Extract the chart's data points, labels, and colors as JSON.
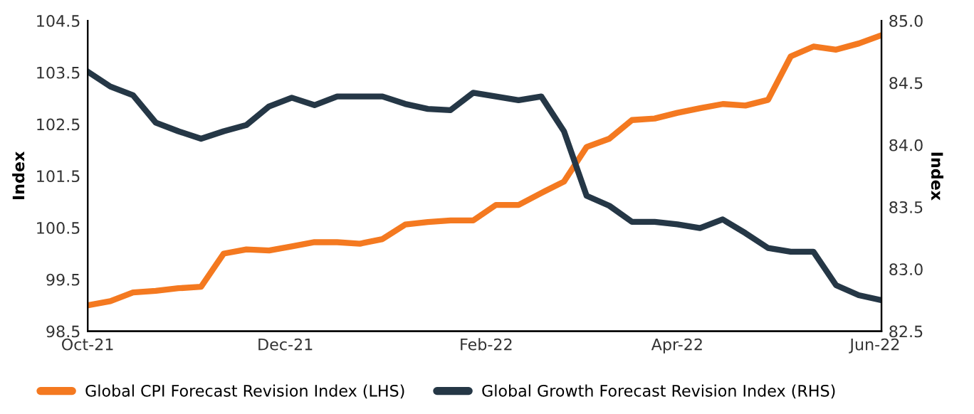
{
  "chart_data": {
    "type": "line",
    "x": [
      "2021-10-01",
      "2021-10-08",
      "2021-10-15",
      "2021-10-22",
      "2021-10-29",
      "2021-11-05",
      "2021-11-12",
      "2021-11-19",
      "2021-11-26",
      "2021-12-03",
      "2021-12-10",
      "2021-12-17",
      "2021-12-24",
      "2021-12-31",
      "2022-01-07",
      "2022-01-14",
      "2022-01-21",
      "2022-01-28",
      "2022-02-04",
      "2022-02-11",
      "2022-02-18",
      "2022-02-25",
      "2022-03-04",
      "2022-03-11",
      "2022-03-18",
      "2022-03-25",
      "2022-04-01",
      "2022-04-08",
      "2022-04-15",
      "2022-04-22",
      "2022-04-29",
      "2022-05-06",
      "2022-05-13",
      "2022-05-20",
      "2022-05-27",
      "2022-06-03"
    ],
    "series": [
      {
        "name": "Global CPI Forecast Revision Index (LHS)",
        "color": "#f47920",
        "values": [
          99.0,
          99.08,
          99.25,
          99.28,
          99.33,
          99.36,
          100.0,
          100.08,
          100.06,
          100.14,
          100.22,
          100.22,
          100.19,
          100.28,
          100.56,
          100.61,
          100.64,
          100.64,
          100.94,
          100.94,
          101.17,
          101.39,
          102.06,
          102.22,
          102.58,
          102.61,
          102.72,
          102.81,
          102.89,
          102.86,
          102.97,
          103.81,
          104.0,
          103.94,
          104.06,
          104.22
        ]
      },
      {
        "name": "Global Growth Forecast Revision Index (RHS)",
        "color": "#253746",
        "axis": "y2",
        "values": [
          84.59,
          84.47,
          84.4,
          84.18,
          84.11,
          84.05,
          84.11,
          84.16,
          84.31,
          84.38,
          84.32,
          84.39,
          84.39,
          84.39,
          84.33,
          84.29,
          84.28,
          84.42,
          84.39,
          84.36,
          84.39,
          84.11,
          83.59,
          83.51,
          83.38,
          83.38,
          83.36,
          83.33,
          83.4,
          83.29,
          83.17,
          83.14,
          83.14,
          82.87,
          82.79,
          82.75
        ]
      }
    ],
    "xlim": [
      "2021-10-01",
      "2022-06-03"
    ],
    "xticks": [
      {
        "value": "2021-10-01",
        "label": "Oct-21"
      },
      {
        "value": "2021-12-01",
        "label": "Dec-21"
      },
      {
        "value": "2022-02-01",
        "label": "Feb-22"
      },
      {
        "value": "2022-04-01",
        "label": "Apr-22"
      },
      {
        "value": "2022-06-01",
        "label": "Jun-22"
      }
    ],
    "ylabel": "Index",
    "y2label": "Index",
    "ylim": [
      98.5,
      104.5
    ],
    "yticks": [
      {
        "value": 98.5,
        "label": "98.5"
      },
      {
        "value": 99.5,
        "label": "99.5"
      },
      {
        "value": 100.5,
        "label": "100.5"
      },
      {
        "value": 101.5,
        "label": "101.5"
      },
      {
        "value": 102.5,
        "label": "102.5"
      },
      {
        "value": 103.5,
        "label": "103.5"
      },
      {
        "value": 104.5,
        "label": "104.5"
      }
    ],
    "y2lim": [
      82.5,
      85.0
    ],
    "y2ticks": [
      {
        "value": 82.5,
        "label": "82.5"
      },
      {
        "value": 83.0,
        "label": "83.0"
      },
      {
        "value": 83.5,
        "label": "83.5"
      },
      {
        "value": 84.0,
        "label": "84.0"
      },
      {
        "value": 84.5,
        "label": "84.5"
      },
      {
        "value": 85.0,
        "label": "85.0"
      }
    ],
    "grid": false,
    "legend": "bottom",
    "line_style": "solid",
    "marker": "none"
  }
}
